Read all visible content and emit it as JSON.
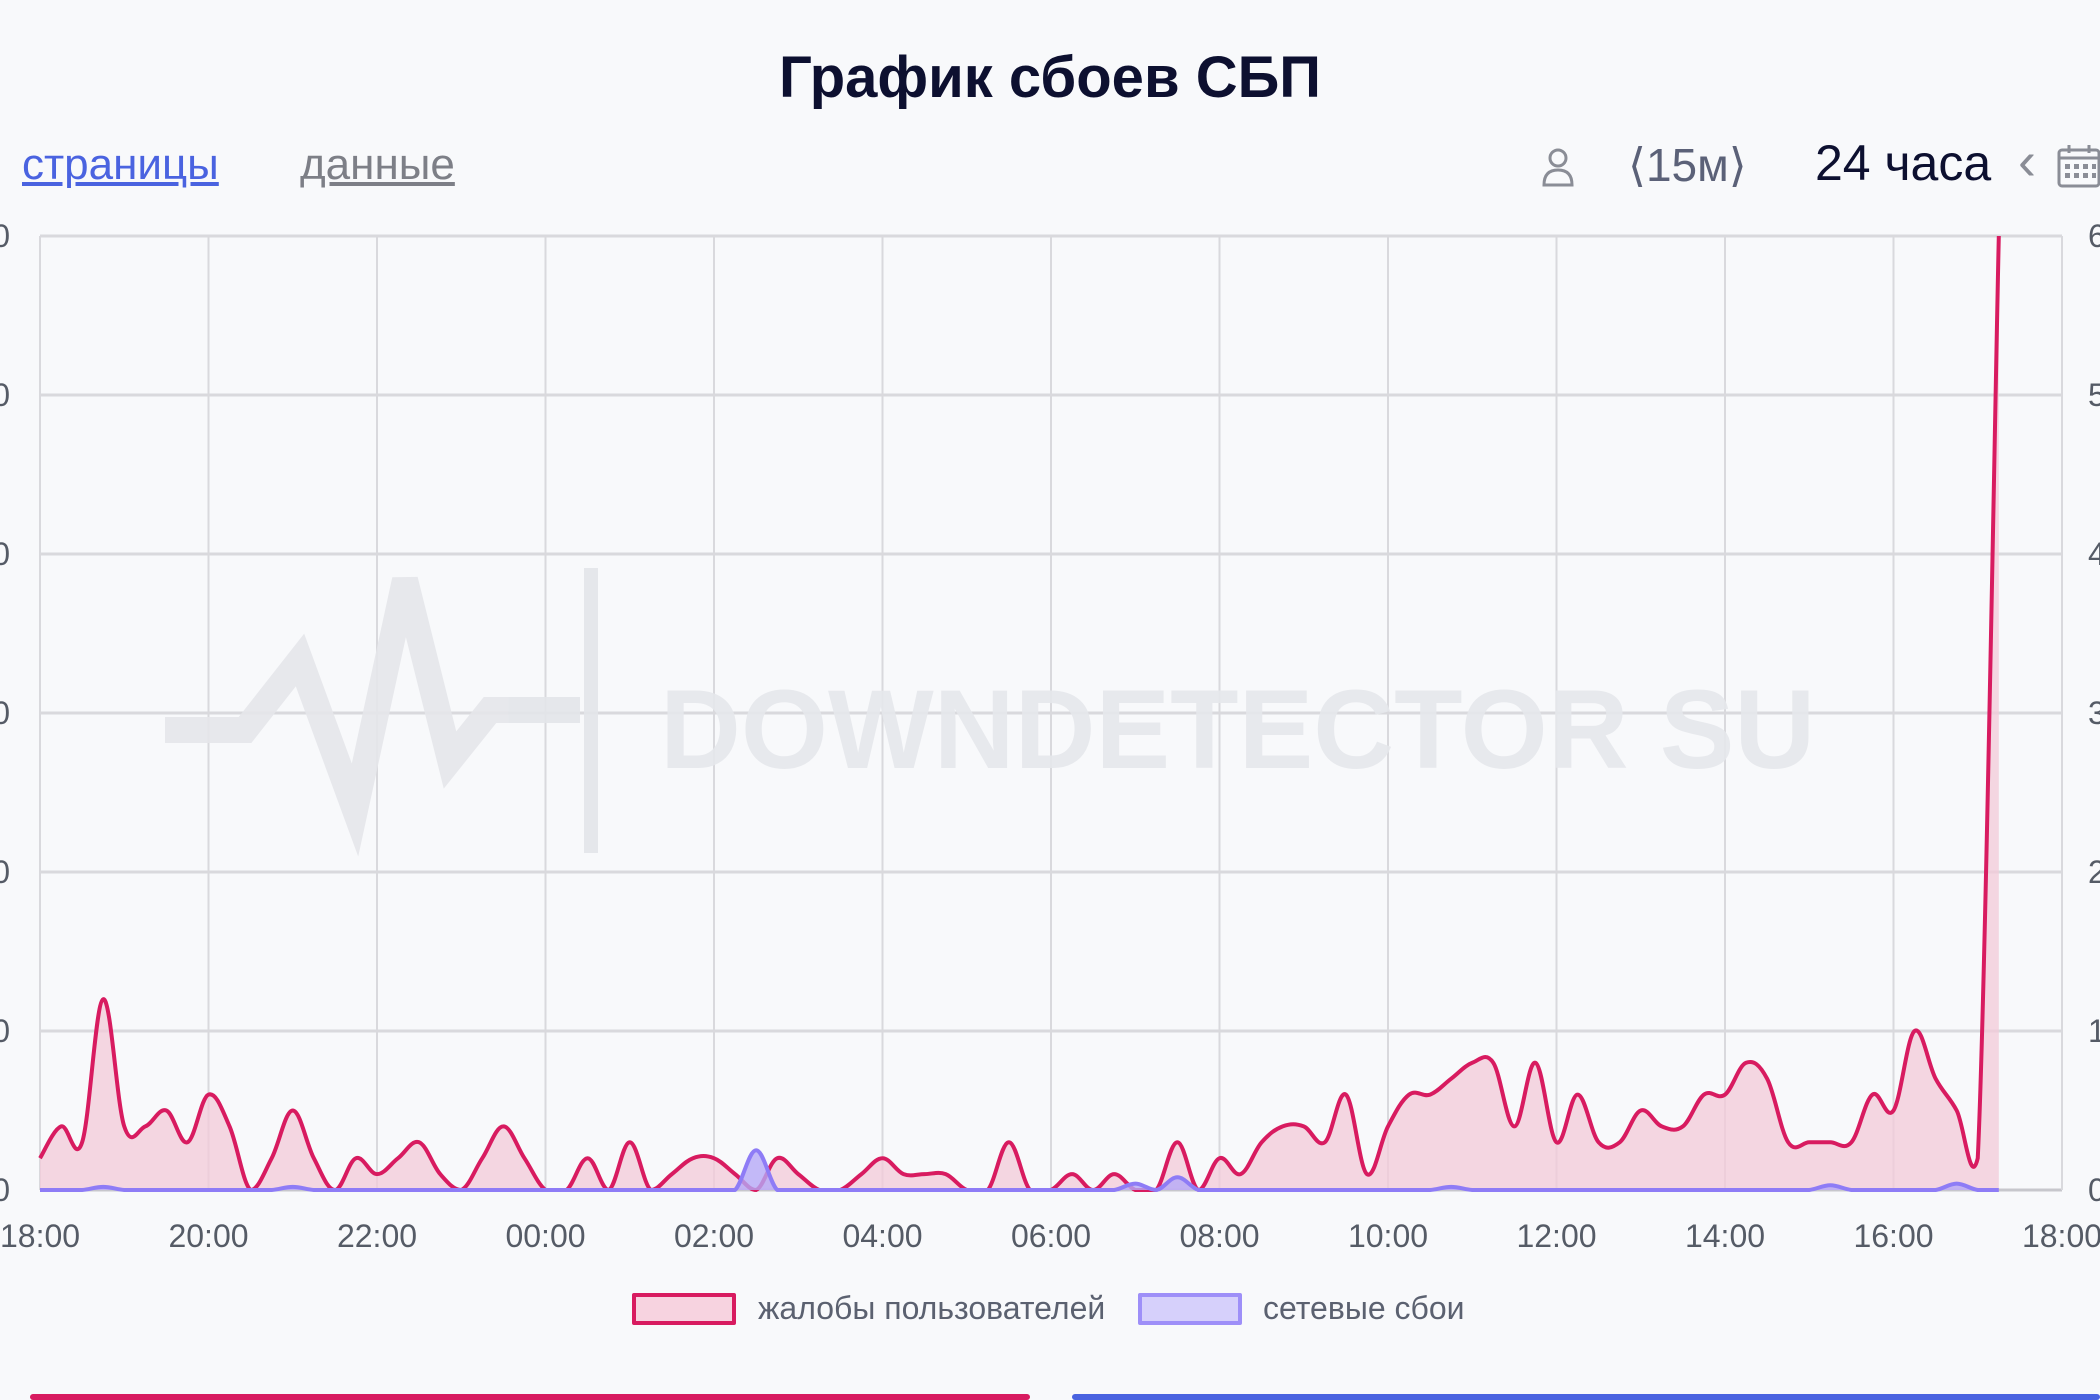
{
  "page": {
    "title": "График сбоев СБП",
    "tabs": [
      {
        "label": "страницы",
        "active": true
      },
      {
        "label": "данные",
        "active": false
      }
    ],
    "controls": {
      "user_icon": "user-icon",
      "interval": "⟨15м⟩",
      "range": "24 часа",
      "prev_icon": "chevron-left-icon",
      "calendar_icon": "calendar-icon"
    },
    "watermark": "DOWNDETECTOR SU"
  },
  "colors": {
    "complaints": "#d81b60",
    "complaints_fill": "#f3c9d8",
    "network": "#8e7cf6",
    "network_fill": "#b5a9f7",
    "grid": "#d9d9dd"
  },
  "chart_data": {
    "type": "area",
    "title": "График сбоев СБП",
    "x_ticks": [
      "18:00",
      "20:00",
      "22:00",
      "00:00",
      "02:00",
      "04:00",
      "06:00",
      "08:00",
      "10:00",
      "12:00",
      "14:00",
      "16:00",
      "18:00"
    ],
    "y_ticks_left": [
      "0",
      "0",
      "0",
      "0",
      "0",
      "0",
      "0"
    ],
    "y_ticks_right": [
      "0",
      "1",
      "2",
      "3",
      "4",
      "5",
      "6"
    ],
    "ylim": [
      0,
      60
    ],
    "grid": true,
    "legend_position": "bottom",
    "x_hours": [
      0,
      0.25,
      0.5,
      0.75,
      1,
      1.25,
      1.5,
      1.75,
      2,
      2.25,
      2.5,
      2.75,
      3,
      3.25,
      3.5,
      3.75,
      4,
      4.25,
      4.5,
      4.75,
      5,
      5.25,
      5.5,
      5.75,
      6,
      6.25,
      6.5,
      6.75,
      7,
      7.25,
      7.5,
      7.75,
      8,
      8.25,
      8.5,
      8.75,
      9,
      9.25,
      9.5,
      9.75,
      10,
      10.25,
      10.5,
      10.75,
      11,
      11.25,
      11.5,
      11.75,
      12,
      12.25,
      12.5,
      12.75,
      13,
      13.25,
      13.5,
      13.75,
      14,
      14.25,
      14.5,
      14.75,
      15,
      15.25,
      15.5,
      15.75,
      16,
      16.25,
      16.5,
      16.75,
      17,
      17.25,
      17.5,
      17.75,
      18,
      18.25,
      18.5,
      18.75,
      19,
      19.25,
      19.5,
      19.75,
      20,
      20.25,
      20.5,
      20.75,
      21,
      21.25,
      21.5,
      21.75,
      22,
      22.25,
      22.5,
      22.75,
      23,
      23.25
    ],
    "series": [
      {
        "name": "жалобы пользователей",
        "values": [
          2,
          4,
          3,
          12,
          4,
          4,
          5,
          3,
          6,
          4,
          0,
          2,
          5,
          2,
          0,
          2,
          1,
          2,
          3,
          1,
          0,
          2,
          4,
          2,
          0,
          0,
          2,
          0,
          3,
          0,
          1,
          2,
          2,
          1,
          0,
          2,
          1,
          0,
          0,
          1,
          2,
          1,
          1,
          1,
          0,
          0,
          3,
          0,
          0,
          1,
          0,
          1,
          0,
          0,
          3,
          0,
          2,
          1,
          3,
          4,
          4,
          3,
          6,
          1,
          4,
          6,
          6,
          7,
          8,
          8,
          4,
          8,
          3,
          6,
          3,
          3,
          5,
          4,
          4,
          6,
          6,
          8,
          7,
          3,
          3,
          3,
          3,
          6,
          5,
          10,
          7,
          5,
          2,
          60
        ]
      },
      {
        "name": "сетевые сбои",
        "values": [
          0,
          0,
          0,
          0.2,
          0,
          0,
          0,
          0,
          0,
          0,
          0,
          0,
          0.2,
          0,
          0,
          0,
          0,
          0,
          0,
          0,
          0,
          0,
          0,
          0,
          0,
          0,
          0,
          0,
          0,
          0,
          0,
          0,
          0,
          0,
          2.5,
          0,
          0,
          0,
          0,
          0,
          0,
          0,
          0,
          0,
          0,
          0,
          0,
          0,
          0,
          0,
          0,
          0,
          0.4,
          0,
          0.8,
          0,
          0,
          0,
          0,
          0,
          0,
          0,
          0,
          0,
          0,
          0,
          0,
          0.2,
          0,
          0,
          0,
          0,
          0,
          0,
          0,
          0,
          0,
          0,
          0,
          0,
          0,
          0,
          0,
          0,
          0,
          0.3,
          0,
          0,
          0,
          0,
          0,
          0.4,
          0,
          0
        ]
      }
    ]
  }
}
